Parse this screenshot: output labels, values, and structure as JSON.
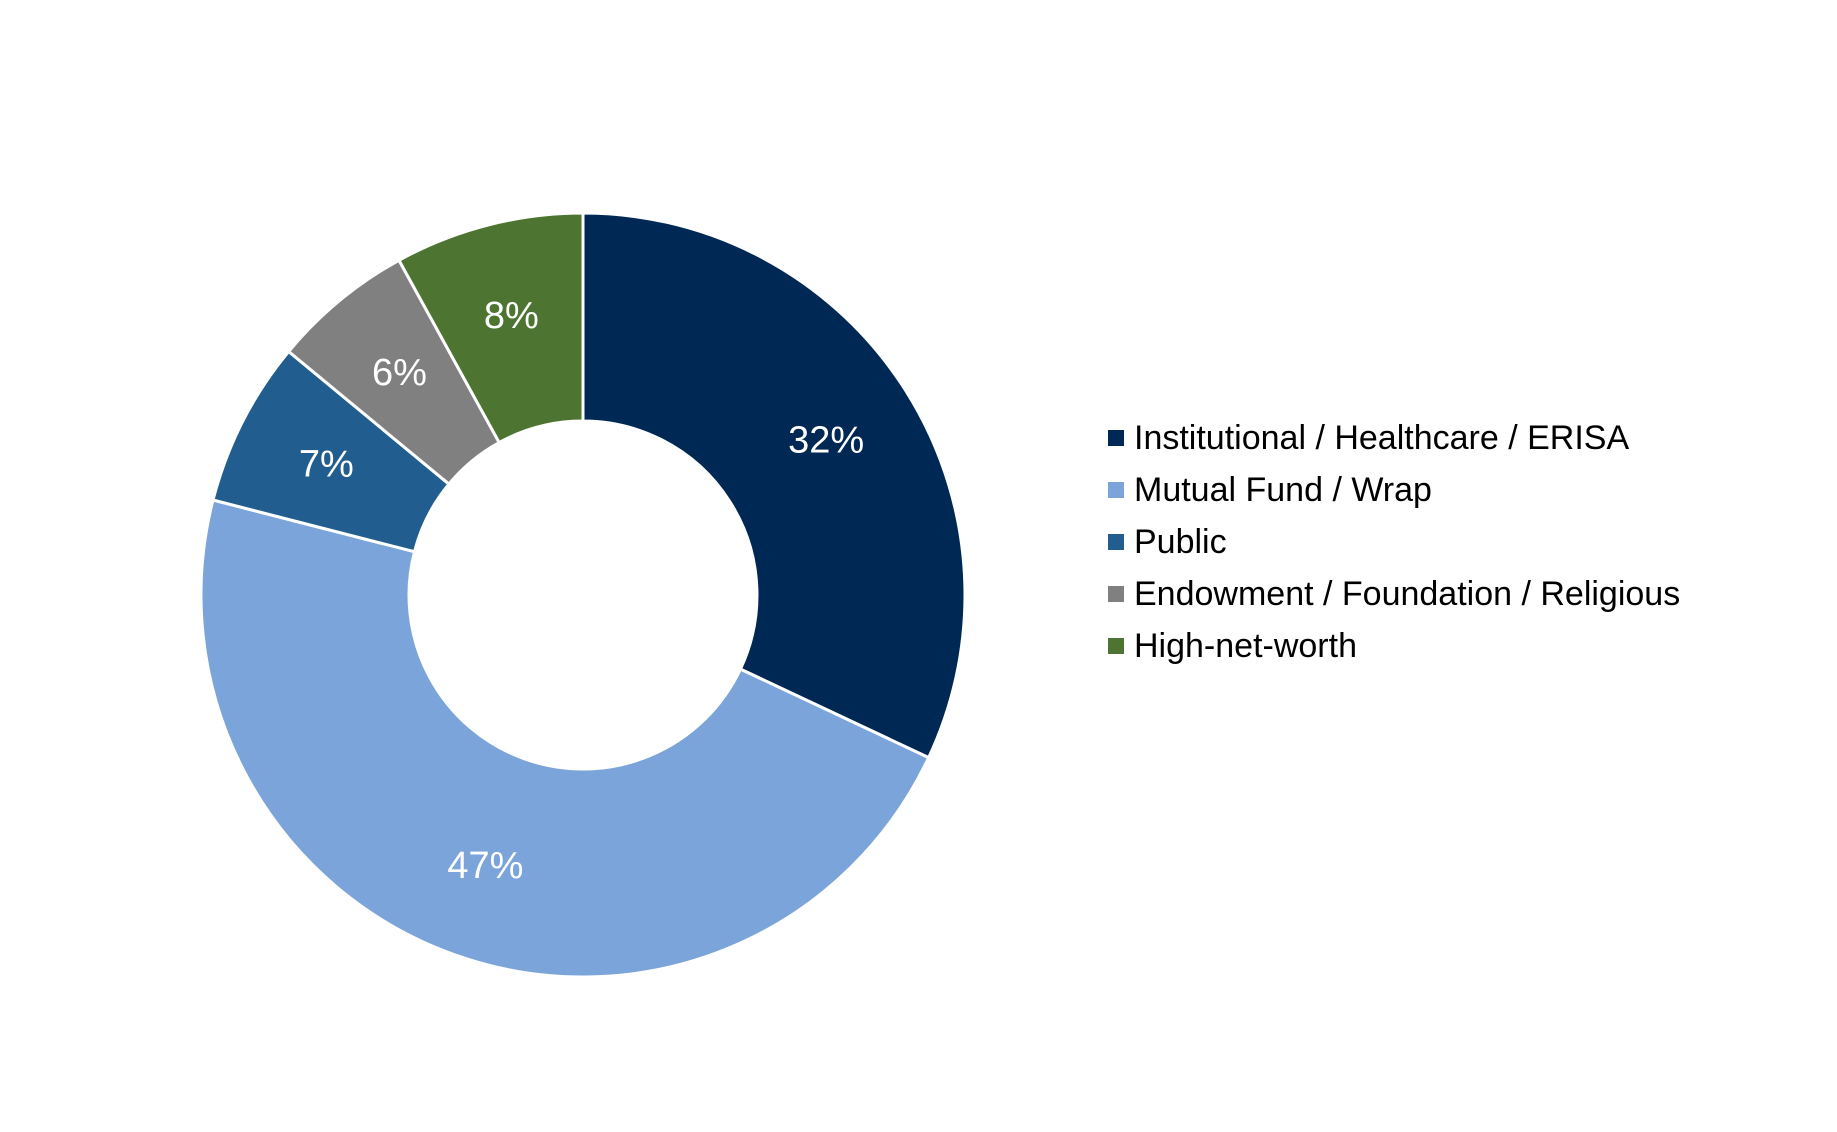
{
  "chart_data": {
    "type": "pie",
    "variant": "donut",
    "title": "",
    "categories": [
      "Institutional / Healthcare / ERISA",
      "Mutual Fund / Wrap",
      "Public",
      "Endowment / Foundation / Religious",
      "High-net-worth"
    ],
    "values": [
      32,
      47,
      7,
      6,
      8
    ],
    "data_labels": [
      "32%",
      "47%",
      "7%",
      "6%",
      "8%"
    ],
    "colors": [
      "#002855",
      "#7BA4DB",
      "#215E8F",
      "#808080",
      "#4D7431"
    ],
    "legend_position": "right",
    "start_angle": "12 o'clock",
    "direction": "clockwise"
  }
}
